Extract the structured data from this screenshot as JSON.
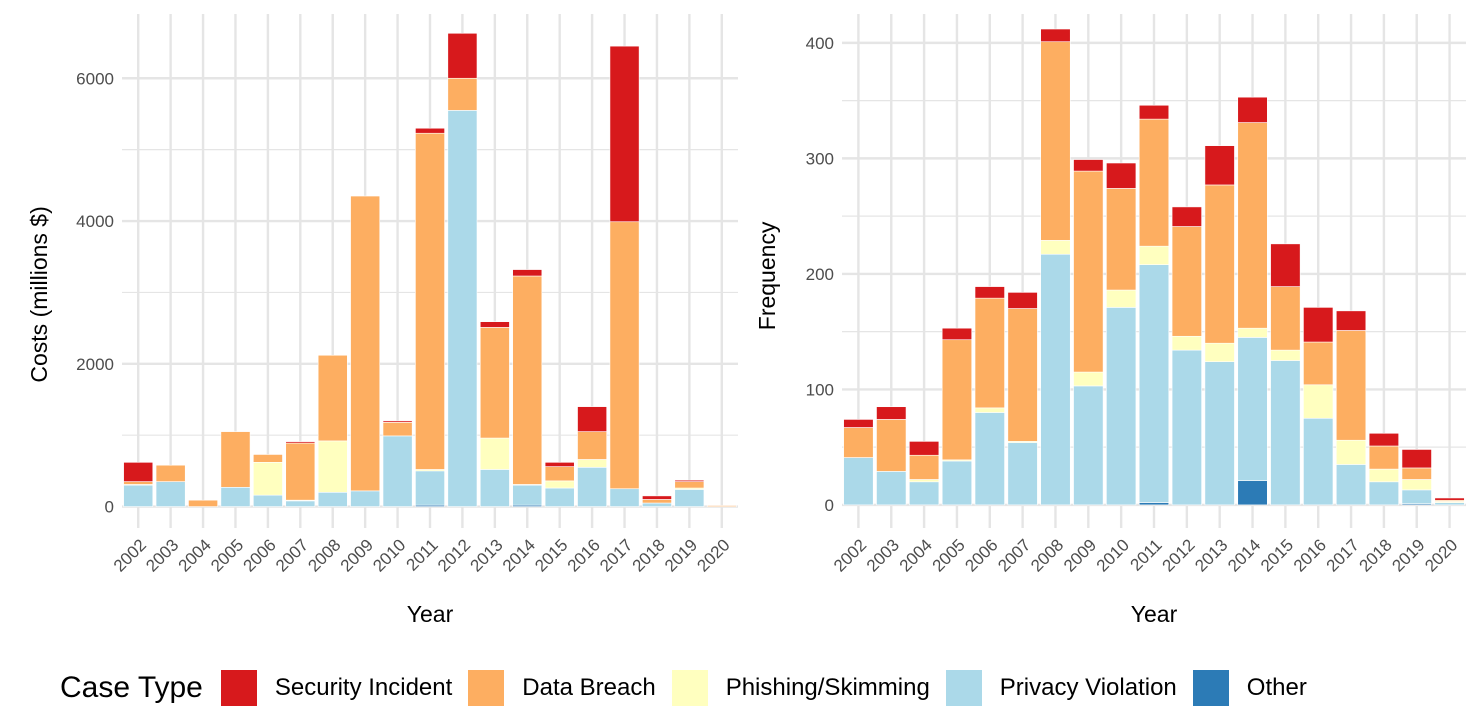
{
  "chart_data": [
    {
      "type": "bar",
      "stacked": true,
      "xlabel": "Year",
      "ylabel": "Costs (millions $)",
      "ylim": [
        -300,
        6900
      ],
      "yticks": [
        0,
        2000,
        4000,
        6000
      ],
      "categories": [
        "2002",
        "2003",
        "2004",
        "2005",
        "2006",
        "2007",
        "2008",
        "2009",
        "2010",
        "2011",
        "2012",
        "2013",
        "2014",
        "2015",
        "2016",
        "2017",
        "2018",
        "2019",
        "2020"
      ],
      "grid": true,
      "series": [
        {
          "name": "Other",
          "values": [
            0,
            0,
            0,
            0,
            0,
            0,
            0,
            0,
            0,
            20,
            0,
            0,
            20,
            0,
            0,
            0,
            0,
            0,
            0
          ]
        },
        {
          "name": "Privacy Violation",
          "values": [
            300,
            350,
            0,
            270,
            160,
            80,
            200,
            220,
            990,
            480,
            5550,
            520,
            280,
            260,
            550,
            250,
            50,
            240,
            0
          ]
        },
        {
          "name": "Phishing/Skimming",
          "values": [
            10,
            0,
            0,
            0,
            460,
            10,
            720,
            0,
            0,
            20,
            0,
            440,
            10,
            100,
            110,
            0,
            0,
            20,
            0
          ]
        },
        {
          "name": "Data Breach",
          "values": [
            40,
            230,
            90,
            780,
            110,
            800,
            1200,
            4130,
            190,
            4710,
            450,
            1550,
            2920,
            200,
            390,
            3740,
            50,
            90,
            15
          ]
        },
        {
          "name": "Security Incident",
          "values": [
            270,
            0,
            0,
            0,
            0,
            20,
            0,
            0,
            20,
            70,
            630,
            80,
            90,
            60,
            350,
            2460,
            50,
            20,
            0
          ]
        }
      ]
    },
    {
      "type": "bar",
      "stacked": true,
      "xlabel": "Year",
      "ylabel": "Frequency",
      "ylim": [
        -20,
        425
      ],
      "yticks": [
        0,
        100,
        200,
        300,
        400
      ],
      "categories": [
        "2002",
        "2003",
        "2004",
        "2005",
        "2006",
        "2007",
        "2008",
        "2009",
        "2010",
        "2011",
        "2012",
        "2013",
        "2014",
        "2015",
        "2016",
        "2017",
        "2018",
        "2019",
        "2020"
      ],
      "grid": true,
      "series": [
        {
          "name": "Other",
          "values": [
            0,
            0,
            0,
            0,
            0,
            0,
            0,
            0,
            0,
            2,
            0,
            0,
            21,
            0,
            0,
            0,
            0,
            1,
            0
          ]
        },
        {
          "name": "Privacy Violation",
          "values": [
            41,
            29,
            20,
            38,
            80,
            54,
            217,
            103,
            171,
            206,
            134,
            124,
            124,
            125,
            75,
            35,
            20,
            12,
            2
          ]
        },
        {
          "name": "Phishing/Skimming",
          "values": [
            0,
            0,
            2,
            1,
            4,
            1,
            12,
            12,
            15,
            16,
            12,
            16,
            8,
            9,
            29,
            21,
            11,
            9,
            1
          ]
        },
        {
          "name": "Data Breach",
          "values": [
            26,
            45,
            21,
            104,
            95,
            115,
            172,
            174,
            88,
            110,
            95,
            137,
            178,
            55,
            37,
            95,
            20,
            10,
            1
          ]
        },
        {
          "name": "Security Incident",
          "values": [
            7,
            11,
            12,
            10,
            10,
            14,
            11,
            10,
            22,
            12,
            17,
            34,
            22,
            37,
            30,
            17,
            11,
            16,
            2
          ]
        }
      ]
    }
  ],
  "legend": {
    "title": "Case Type",
    "items": [
      {
        "label": "Security Incident",
        "color": "#d7191c"
      },
      {
        "label": "Data Breach",
        "color": "#fdae61"
      },
      {
        "label": "Phishing/Skimming",
        "color": "#ffffbf"
      },
      {
        "label": "Privacy Violation",
        "color": "#abd9e9"
      },
      {
        "label": "Other",
        "color": "#2c7bb6"
      }
    ]
  },
  "colors": {
    "Security Incident": "#d7191c",
    "Data Breach": "#fdae61",
    "Phishing/Skimming": "#ffffbf",
    "Privacy Violation": "#abd9e9",
    "Other": "#2c7bb6",
    "grid": "#e5e5e5",
    "tick_text": "#4d4d4d"
  }
}
